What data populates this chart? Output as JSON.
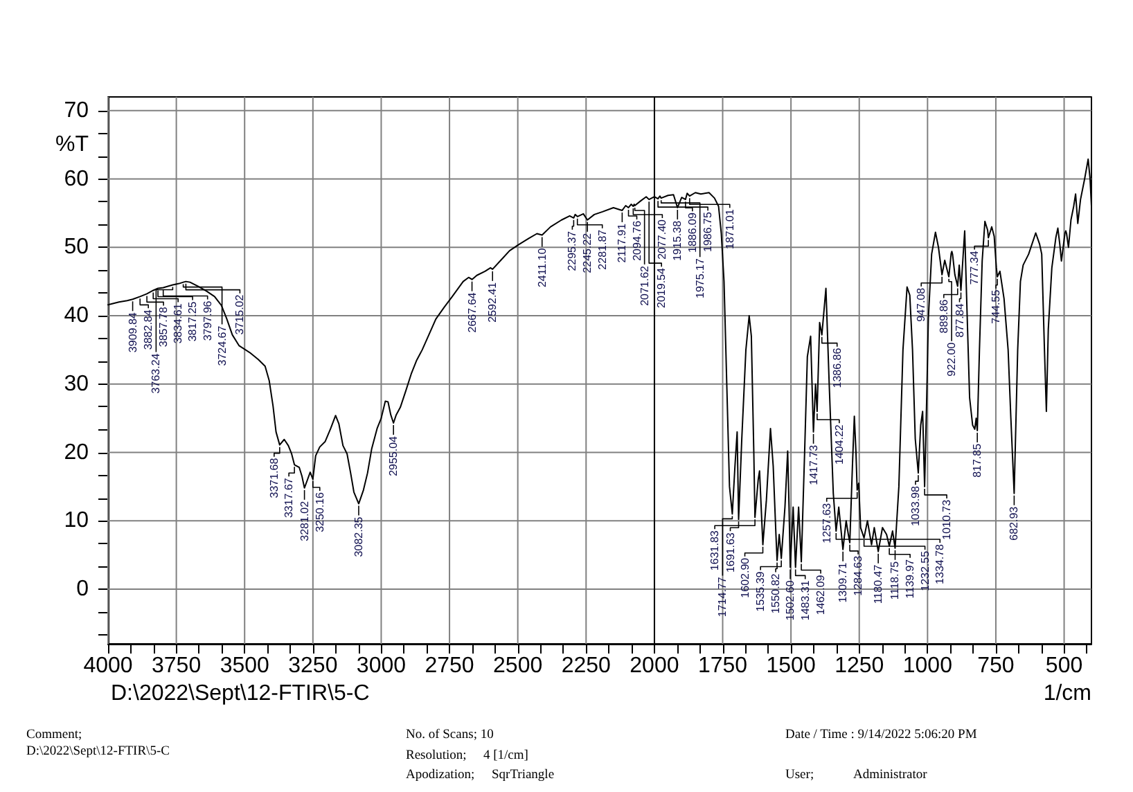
{
  "chart_data": {
    "type": "line",
    "xlabel": "1/cm",
    "ylabel": "%T",
    "color": "#000000",
    "x": [
      4000,
      3960,
      3930,
      3909.84,
      3882.84,
      3857.78,
      3834.61,
      3817.25,
      3797.96,
      3763.24,
      3740,
      3724.67,
      3715.02,
      3700,
      3670,
      3640,
      3610,
      3585,
      3566,
      3545,
      3520,
      3481,
      3450,
      3425,
      3410,
      3396,
      3385,
      3371.68,
      3355,
      3340,
      3328,
      3317.67,
      3300,
      3290,
      3281.02,
      3270,
      3260,
      3250.16,
      3240,
      3225,
      3205,
      3185,
      3167,
      3155,
      3140,
      3125,
      3112,
      3100,
      3082.35,
      3065,
      3050,
      3035,
      3015,
      3000,
      2985,
      2975,
      2965,
      2955.04,
      2945,
      2930,
      2910,
      2890,
      2870,
      2850,
      2830,
      2800,
      2770,
      2740,
      2700,
      2680,
      2667.64,
      2650,
      2620,
      2600,
      2592.41,
      2560,
      2530,
      2497,
      2460,
      2430,
      2411.1,
      2380,
      2340,
      2310,
      2295.37,
      2290,
      2281.87,
      2260,
      2245.22,
      2220,
      2190,
      2150,
      2117.91,
      2105,
      2094.76,
      2085,
      2077.4,
      2074,
      2071.62,
      2050,
      2030,
      2019.54,
      2000,
      1986.75,
      1980,
      1975.17,
      1950,
      1930,
      1915.38,
      1900,
      1886.09,
      1880,
      1871.01,
      1850,
      1830,
      1800,
      1780,
      1765,
      1755,
      1745,
      1735,
      1725,
      1714.77,
      1705,
      1697,
      1691.63,
      1680,
      1665,
      1653,
      1645,
      1636,
      1631.83,
      1620,
      1615,
      1602.9,
      1590,
      1575,
      1565,
      1555,
      1550.82,
      1543,
      1535.39,
      1522,
      1512,
      1507,
      1502.6,
      1492,
      1483.31,
      1472,
      1462.09,
      1450,
      1440,
      1428,
      1417.73,
      1410,
      1404.22,
      1395,
      1386.86,
      1372,
      1360,
      1345,
      1334.78,
      1325,
      1309.71,
      1298,
      1290,
      1284.63,
      1275,
      1268,
      1262,
      1257.63,
      1252,
      1245,
      1232.55,
      1220,
      1205,
      1195,
      1180.47,
      1165,
      1150,
      1139.97,
      1128,
      1118.75,
      1105,
      1090,
      1075,
      1065,
      1055,
      1045,
      1033.98,
      1025,
      1018,
      1010.73,
      1003,
      997,
      985,
      971,
      960,
      947.08,
      937,
      922,
      913.5,
      911,
      908.5,
      900,
      889.86,
      884,
      877.84,
      864,
      855,
      846,
      835,
      827,
      822,
      817.85,
      810,
      800,
      790,
      780,
      777.34,
      765,
      756,
      748,
      744.55,
      735,
      720,
      705,
      695,
      682.93,
      670,
      660,
      650,
      630,
      604,
      590,
      582,
      572,
      565,
      558,
      545,
      530,
      523,
      516,
      510,
      502,
      497,
      494,
      491,
      484,
      475,
      465,
      458,
      450,
      440,
      425,
      412,
      405,
      400
    ],
    "values": [
      41.6,
      42.0,
      42.2,
      42.4,
      42.8,
      43.2,
      43.7,
      44.0,
      44.1,
      44.5,
      44.7,
      44.9,
      45.0,
      44.9,
      44.3,
      43.6,
      42.8,
      41.5,
      39.6,
      37.2,
      35.6,
      34.6,
      33.6,
      32.6,
      30.5,
      26.8,
      23.0,
      21.1,
      21.9,
      21.0,
      19.8,
      18.2,
      17.8,
      16.5,
      14.8,
      16.0,
      17.1,
      16.1,
      19.5,
      20.8,
      21.6,
      23.5,
      25.4,
      24.2,
      21.0,
      19.8,
      17.0,
      14.2,
      12.5,
      14.5,
      17.0,
      20.5,
      23.5,
      25.0,
      27.5,
      27.4,
      25.5,
      24.3,
      25.5,
      26.6,
      29.0,
      31.5,
      33.5,
      35.0,
      36.8,
      39.5,
      41.2,
      42.8,
      45.0,
      45.6,
      45.3,
      45.9,
      46.5,
      47.0,
      46.8,
      48.2,
      49.5,
      50.4,
      51.3,
      52.0,
      51.8,
      53.0,
      54.0,
      54.6,
      54.3,
      54.8,
      54.5,
      54.9,
      54.0,
      54.8,
      55.2,
      55.8,
      55.4,
      56.1,
      55.8,
      56.3,
      56.0,
      56.3,
      56.1,
      56.8,
      57.4,
      57.0,
      57.4,
      57.1,
      57.5,
      57.2,
      57.6,
      57.7,
      55.8,
      57.3,
      57.0,
      57.9,
      57.5,
      58.0,
      57.8,
      58.0,
      57.2,
      56.0,
      52.0,
      45.0,
      30.0,
      15.0,
      11.0,
      18.0,
      23.0,
      10.2,
      22.0,
      35.0,
      40.0,
      37.0,
      20.0,
      10.5,
      16.0,
      17.3,
      6.5,
      13.0,
      23.5,
      18.0,
      8.0,
      4.2,
      8.0,
      4.5,
      12.0,
      20.2,
      12.0,
      3.2,
      12.0,
      3.2,
      12.0,
      4.0,
      20.0,
      34.0,
      37.0,
      23.0,
      30.0,
      26.0,
      39.0,
      37.2,
      44.0,
      30.0,
      14.0,
      8.5,
      12.0,
      5.8,
      10.0,
      8.0,
      6.8,
      18.0,
      25.3,
      20.0,
      14.5,
      15.5,
      9.0,
      7.5,
      10.0,
      6.5,
      9.0,
      5.5,
      9.0,
      8.0,
      6.3,
      8.5,
      6.0,
      15.0,
      35.0,
      44.2,
      43.0,
      35.0,
      22.0,
      17.0,
      24.0,
      26.0,
      15.0,
      28.0,
      39.6,
      49.0,
      52.2,
      50.0,
      46.0,
      48.1,
      45.7,
      49.1,
      49.4,
      49.0,
      46.0,
      44.3,
      47.4,
      43.7,
      52.4,
      40.0,
      28.0,
      24.0,
      23.4,
      25.0,
      23.2,
      35.0,
      48.0,
      53.8,
      52.5,
      51.4,
      53.0,
      51.6,
      47.0,
      45.7,
      46.5,
      42.5,
      35.0,
      25.0,
      14.0,
      35.0,
      45.0,
      47.4,
      49.0,
      52.1,
      50.5,
      49.0,
      35.0,
      26.0,
      38.0,
      47.0,
      51.5,
      52.8,
      50.5,
      48.0,
      50.5,
      52.1,
      52.4,
      52.0,
      50.0,
      54.0,
      56.0,
      57.8,
      53.5,
      57.0,
      60.0,
      62.9,
      60.0,
      56.0
    ],
    "xlim": [
      4000,
      400
    ],
    "ylim": [
      -8,
      72
    ],
    "xticks": [
      4000,
      {
        "value": 3916.7,
        "label": null
      },
      {
        "value": 3833.3,
        "label": null
      },
      3750,
      {
        "value": 3666.7,
        "label": null
      },
      {
        "value": 3583.3,
        "label": null
      },
      3500,
      {
        "value": 3416.7,
        "label": null
      },
      {
        "value": 3333.3,
        "label": null
      },
      3250,
      {
        "value": 3166.7,
        "label": null
      },
      {
        "value": 3083.3,
        "label": null
      },
      3000,
      {
        "value": 2916.7,
        "label": null
      },
      {
        "value": 2833.3,
        "label": null
      },
      2750,
      {
        "value": 2666.7,
        "label": null
      },
      {
        "value": 2583.3,
        "label": null
      },
      2500,
      {
        "value": 2416.7,
        "label": null
      },
      {
        "value": 2333.3,
        "label": null
      },
      2250,
      {
        "value": 2166.7,
        "label": null
      },
      {
        "value": 2083.3,
        "label": null
      },
      2000,
      {
        "value": 1916.7,
        "label": null
      },
      {
        "value": 1833.3,
        "label": null
      },
      1750,
      {
        "value": 1666.7,
        "label": null
      },
      {
        "value": 1583.3,
        "label": null
      },
      1500,
      {
        "value": 1416.7,
        "label": null
      },
      {
        "value": 1333.3,
        "label": null
      },
      1250,
      {
        "value": 1166.7,
        "label": null
      },
      {
        "value": 1083.3,
        "label": null
      },
      1000,
      {
        "value": 916.7,
        "label": null
      },
      {
        "value": 833.3,
        "label": null
      },
      750,
      {
        "value": 666.7,
        "label": null
      },
      {
        "value": 583.3,
        "label": null
      },
      500,
      {
        "value": 416.7,
        "label": null
      }
    ],
    "yticks": [
      {
        "value": -6.7,
        "label": null
      },
      {
        "value": -3.3,
        "label": null
      },
      0,
      {
        "value": 3.3,
        "label": null
      },
      {
        "value": 6.7,
        "label": null
      },
      10,
      {
        "value": 13.3,
        "label": null
      },
      {
        "value": 16.7,
        "label": null
      },
      20,
      {
        "value": 23.3,
        "label": null
      },
      {
        "value": 26.7,
        "label": null
      },
      30,
      {
        "value": 33.3,
        "label": null
      },
      {
        "value": 36.7,
        "label": null
      },
      40,
      {
        "value": 43.3,
        "label": null
      },
      {
        "value": 46.7,
        "label": null
      },
      50,
      {
        "value": 53.3,
        "label": null
      },
      {
        "value": 56.7,
        "label": null
      },
      60,
      {
        "value": 63.3,
        "label": null
      },
      {
        "value": 66.7,
        "label": null
      },
      70
    ],
    "grid": true,
    "ref_lines": [
      {
        "axis": "x",
        "value": 2000,
        "color": "#000000"
      }
    ],
    "annotations": [
      "D:\\2022\\Sept\\12-FTIR\\5-C",
      "Comment;",
      "D:\\2022\\Sept\\12-FTIR\\5-C",
      "No. of Scans; 10",
      "Resolution;",
      "4 [1/cm]",
      "Apodization;",
      "SqrTriangle",
      "Date / Time : 9/14/2022 5:06:20 PM",
      "User;",
      "Administrator",
      {
        "text": "3909.84",
        "x": 3909.84,
        "y": 42.4
      },
      {
        "text": "3882.84",
        "x": 3882.84,
        "y": 42.8
      },
      {
        "text": "3857.78",
        "x": 3857.78,
        "y": 43.2
      },
      {
        "text": "3834.61",
        "x": 3834.61,
        "y": 43.7
      },
      {
        "text": "3817.25",
        "x": 3817.25,
        "y": 44.0
      },
      {
        "text": "3797.96",
        "x": 3797.96,
        "y": 44.1
      },
      {
        "text": "3763.24",
        "x": 3763.24,
        "y": 44.5
      },
      {
        "text": "3724.67",
        "x": 3724.67,
        "y": 44.9
      },
      {
        "text": "3715.02",
        "x": 3715.02,
        "y": 45.0
      },
      {
        "text": "3371.68",
        "x": 3371.68,
        "y": 21.1
      },
      {
        "text": "3317.67",
        "x": 3317.67,
        "y": 18.2
      },
      {
        "text": "3281.02",
        "x": 3281.02,
        "y": 14.8
      },
      {
        "text": "3250.16",
        "x": 3250.16,
        "y": 16.1
      },
      {
        "text": "3082.35",
        "x": 3082.35,
        "y": 12.5
      },
      {
        "text": "2955.04",
        "x": 2955.04,
        "y": 24.3
      },
      {
        "text": "2667.64",
        "x": 2667.64,
        "y": 45.3
      },
      {
        "text": "2592.41",
        "x": 2592.41,
        "y": 46.8
      },
      {
        "text": "2411.10",
        "x": 2411.1,
        "y": 51.8
      },
      {
        "text": "2295.37",
        "x": 2295.37,
        "y": 54.3
      },
      {
        "text": "2281.87",
        "x": 2281.87,
        "y": 54.5
      },
      {
        "text": "2245.22",
        "x": 2245.22,
        "y": 54.0
      },
      {
        "text": "2117.91",
        "x": 2117.91,
        "y": 55.4
      },
      {
        "text": "2094.76",
        "x": 2094.76,
        "y": 55.8
      },
      {
        "text": "2077.40",
        "x": 2077.4,
        "y": 56.0
      },
      {
        "text": "2071.62",
        "x": 2071.62,
        "y": 56.1
      },
      {
        "text": "2019.54",
        "x": 2019.54,
        "y": 57.0
      },
      {
        "text": "1986.75",
        "x": 1986.75,
        "y": 57.1
      },
      {
        "text": "1975.17",
        "x": 1975.17,
        "y": 57.2
      },
      {
        "text": "1915.38",
        "x": 1915.38,
        "y": 55.8
      },
      {
        "text": "1886.09",
        "x": 1886.09,
        "y": 57.0
      },
      {
        "text": "1871.01",
        "x": 1871.01,
        "y": 57.5
      },
      {
        "text": "1714.77",
        "x": 1714.77,
        "y": 11.0
      },
      {
        "text": "1691.63",
        "x": 1691.63,
        "y": 10.2
      },
      {
        "text": "1631.83",
        "x": 1631.83,
        "y": 10.5
      },
      {
        "text": "1602.90",
        "x": 1602.9,
        "y": 6.5
      },
      {
        "text": "1550.82",
        "x": 1550.82,
        "y": 4.2
      },
      {
        "text": "1535.39",
        "x": 1535.39,
        "y": 4.5
      },
      {
        "text": "1502.60",
        "x": 1502.6,
        "y": 3.2
      },
      {
        "text": "1483.31",
        "x": 1483.31,
        "y": 3.2
      },
      {
        "text": "1462.09",
        "x": 1462.09,
        "y": 4.0
      },
      {
        "text": "1417.73",
        "x": 1417.73,
        "y": 23.0
      },
      {
        "text": "1404.22",
        "x": 1404.22,
        "y": 26.0
      },
      {
        "text": "1386.86",
        "x": 1386.86,
        "y": 37.2
      },
      {
        "text": "1334.78",
        "x": 1334.78,
        "y": 8.5
      },
      {
        "text": "1309.71",
        "x": 1309.71,
        "y": 5.8
      },
      {
        "text": "1284.63",
        "x": 1284.63,
        "y": 6.8
      },
      {
        "text": "1257.63",
        "x": 1257.63,
        "y": 14.5
      },
      {
        "text": "1232.55",
        "x": 1232.55,
        "y": 7.5
      },
      {
        "text": "1180.47",
        "x": 1180.47,
        "y": 5.5
      },
      {
        "text": "1139.97",
        "x": 1139.97,
        "y": 6.3
      },
      {
        "text": "1118.75",
        "x": 1118.75,
        "y": 6.0
      },
      {
        "text": "1033.98",
        "x": 1033.98,
        "y": 17.0
      },
      {
        "text": "1010.73",
        "x": 1010.73,
        "y": 15.0
      },
      {
        "text": "947.08",
        "x": 947.08,
        "y": 46.0
      },
      {
        "text": "922.00",
        "x": 922,
        "y": 45.7
      },
      {
        "text": "889.86",
        "x": 889.86,
        "y": 44.3
      },
      {
        "text": "877.84",
        "x": 877.84,
        "y": 43.7
      },
      {
        "text": "817.85",
        "x": 817.85,
        "y": 23.2
      },
      {
        "text": "777.34",
        "x": 777.34,
        "y": 51.4
      },
      {
        "text": "744.55",
        "x": 744.55,
        "y": 45.7
      },
      {
        "text": "682.93",
        "x": 682.93,
        "y": 14.0
      }
    ]
  }
}
